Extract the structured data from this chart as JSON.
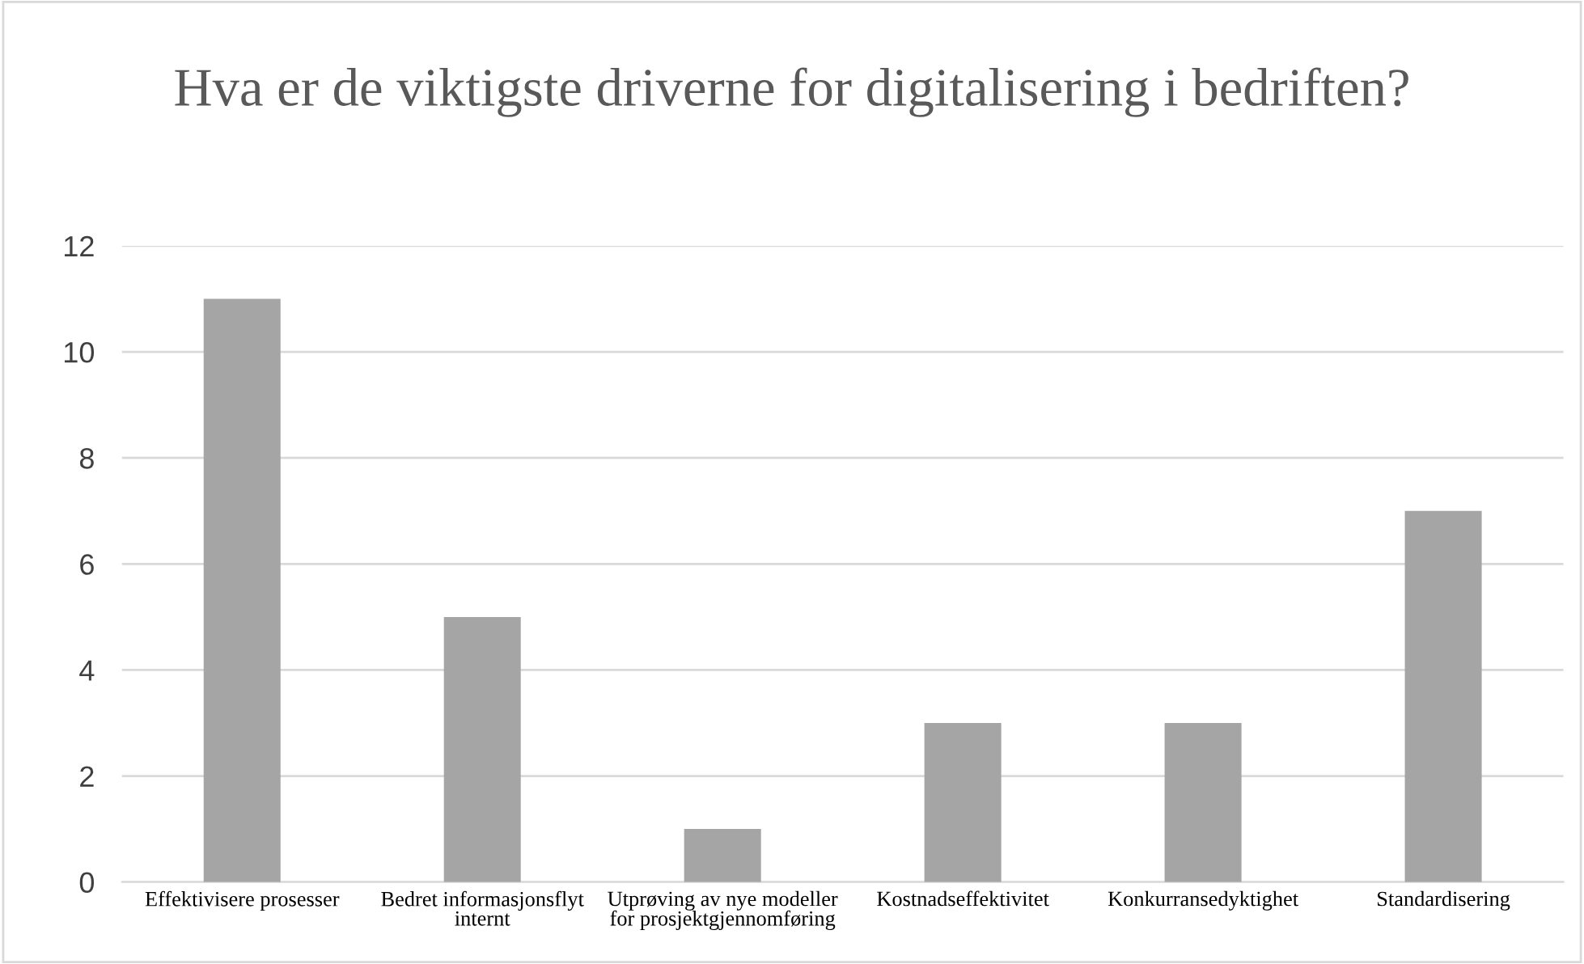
{
  "chart_data": {
    "type": "bar",
    "title": "Hva er de viktigste driverne for digitalisering i bedriften?",
    "categories": [
      "Effektivisere prosesser",
      "Bedret informasjonsflyt\ninternt",
      "Utprøving av nye modeller\nfor prosjektgjennomføring",
      "Kostnadseffektivitet",
      "Konkurransedyktighet",
      "Standardisering"
    ],
    "values": [
      11,
      5,
      1,
      3,
      3,
      7
    ],
    "color": "#a5a5a5",
    "ylim": [
      0,
      12
    ],
    "yticks": [
      0,
      2,
      4,
      6,
      8,
      10,
      12
    ],
    "grid": "y"
  }
}
